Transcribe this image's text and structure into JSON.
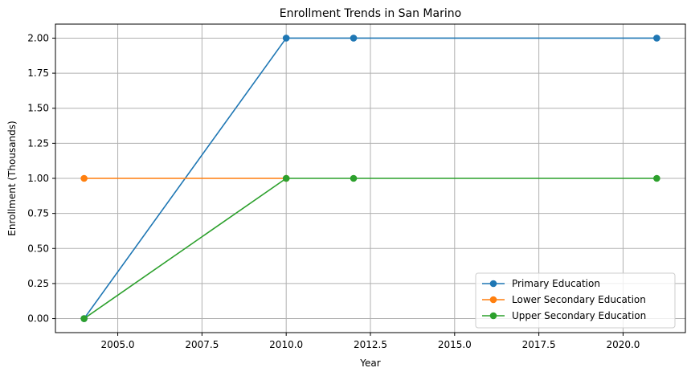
{
  "chart_data": {
    "type": "line",
    "title": "Enrollment Trends in San Marino",
    "xlabel": "Year",
    "ylabel": "Enrollment (Thousands)",
    "xlim": [
      2003.15,
      2021.85
    ],
    "ylim": [
      -0.1,
      2.1
    ],
    "xticks": [
      2005.0,
      2007.5,
      2010.0,
      2012.5,
      2015.0,
      2017.5,
      2020.0
    ],
    "xtick_labels": [
      "2005.0",
      "2007.5",
      "2010.0",
      "2012.5",
      "2015.0",
      "2017.5",
      "2020.0"
    ],
    "yticks": [
      0.0,
      0.25,
      0.5,
      0.75,
      1.0,
      1.25,
      1.5,
      1.75,
      2.0
    ],
    "ytick_labels": [
      "0.00",
      "0.25",
      "0.50",
      "0.75",
      "1.00",
      "1.25",
      "1.50",
      "1.75",
      "2.00"
    ],
    "grid": true,
    "legend_position": "lower-right",
    "marker": "circle",
    "series": [
      {
        "name": "Primary Education",
        "color": "#1f77b4",
        "x": [
          2004,
          2010,
          2012,
          2021
        ],
        "y": [
          0,
          2,
          2,
          2
        ]
      },
      {
        "name": "Lower Secondary Education",
        "color": "#ff7f0e",
        "x": [
          2004,
          2010
        ],
        "y": [
          1,
          1
        ]
      },
      {
        "name": "Upper Secondary Education",
        "color": "#2ca02c",
        "x": [
          2004,
          2010,
          2012,
          2021
        ],
        "y": [
          0,
          1,
          1,
          1
        ]
      }
    ]
  }
}
